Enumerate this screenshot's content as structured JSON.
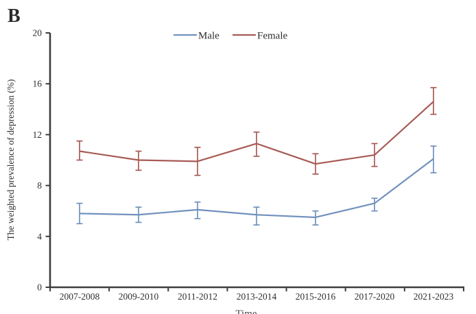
{
  "figure": {
    "panel_label": "B",
    "clipped_bottom_text": "Time"
  },
  "chart_data": {
    "type": "line",
    "title": "",
    "xlabel": "",
    "ylabel": "The weighted prevalence of depression (%)",
    "categories": [
      "2007-2008",
      "2009-2010",
      "2011-2012",
      "2013-2014",
      "2015-2016",
      "2017-2020",
      "2021-2023"
    ],
    "yticks": [
      0,
      4,
      8,
      12,
      16,
      20
    ],
    "ylim": [
      0,
      20
    ],
    "grid": false,
    "legend_position": "top-center",
    "error_bars": true,
    "series": [
      {
        "name": "Male",
        "color": "#7191bd",
        "values": [
          5.8,
          5.7,
          6.1,
          5.7,
          5.5,
          6.6,
          10.1
        ],
        "error_low": [
          5.0,
          5.1,
          5.4,
          4.9,
          4.9,
          6.0,
          9.0
        ],
        "error_high": [
          6.6,
          6.3,
          6.7,
          6.3,
          6.0,
          7.0,
          11.1
        ]
      },
      {
        "name": "Female",
        "color": "#a85a55",
        "values": [
          10.7,
          10.0,
          9.9,
          11.3,
          9.7,
          10.4,
          14.6
        ],
        "error_low": [
          10.0,
          9.2,
          8.8,
          10.3,
          8.9,
          9.5,
          13.6
        ],
        "error_high": [
          11.5,
          10.7,
          11.0,
          12.2,
          10.5,
          11.3,
          15.7
        ]
      }
    ]
  }
}
